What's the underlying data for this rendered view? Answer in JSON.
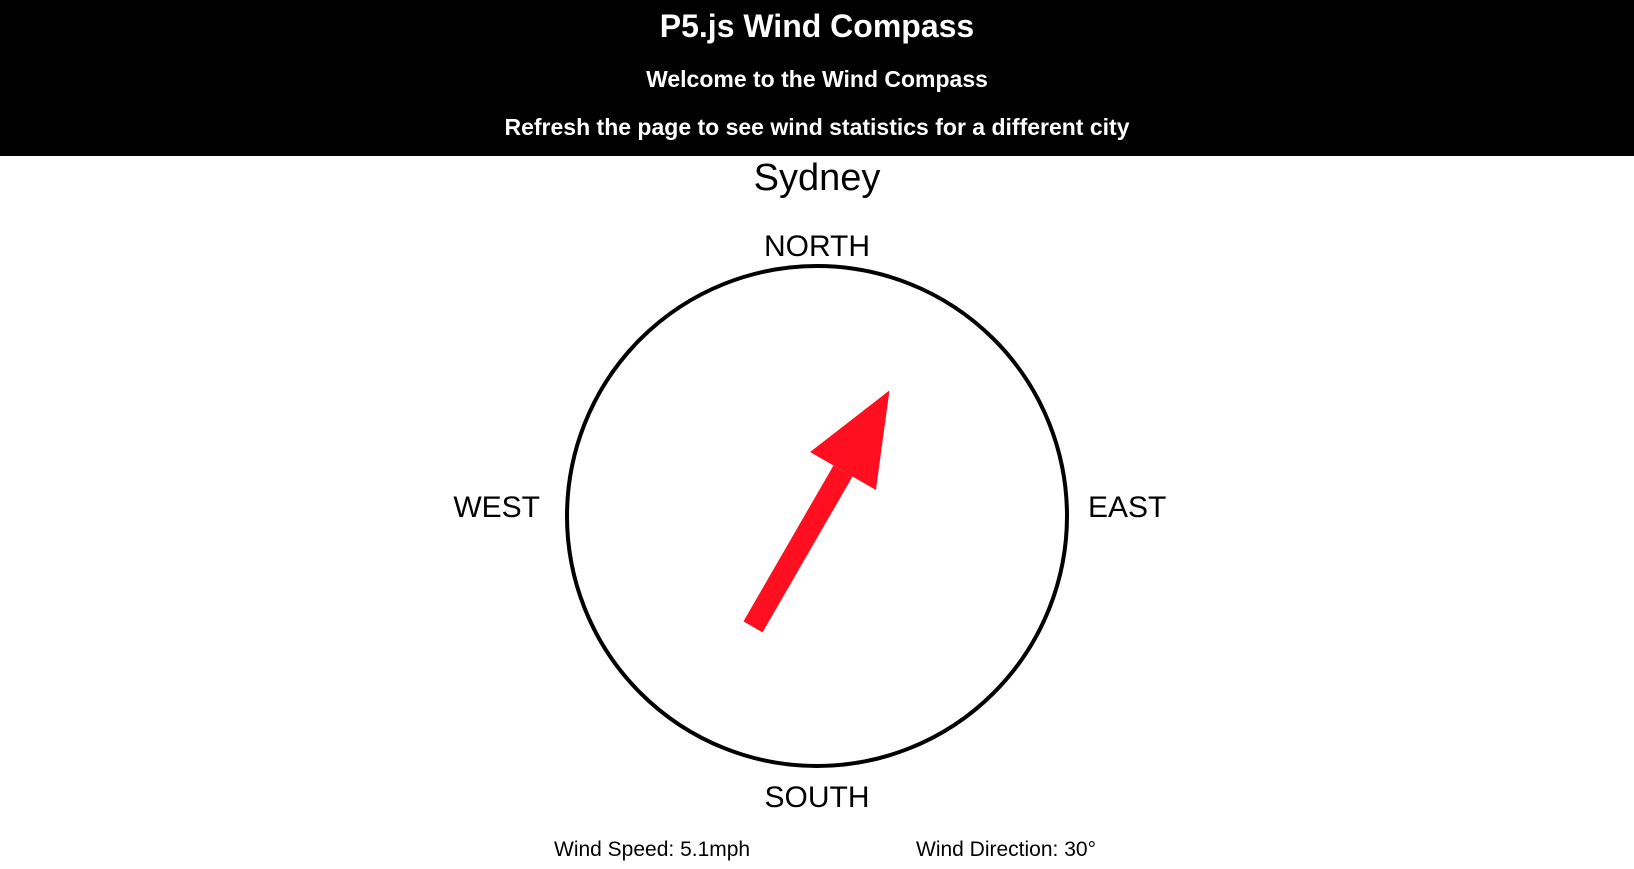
{
  "header": {
    "title": "P5.js Wind Compass",
    "welcome": "Welcome to the Wind Compass",
    "instruction": "Refresh the page to see wind statistics for a different city"
  },
  "compass": {
    "city": "Sydney",
    "north_label": "NORTH",
    "south_label": "SOUTH",
    "east_label": "EAST",
    "west_label": "WEST",
    "arrow_color": "#ff0f1f",
    "circle_color": "#000000",
    "direction_degrees": 30
  },
  "stats": {
    "wind_speed": "Wind Speed: 5.1mph",
    "wind_direction": "Wind Direction: 30°"
  }
}
